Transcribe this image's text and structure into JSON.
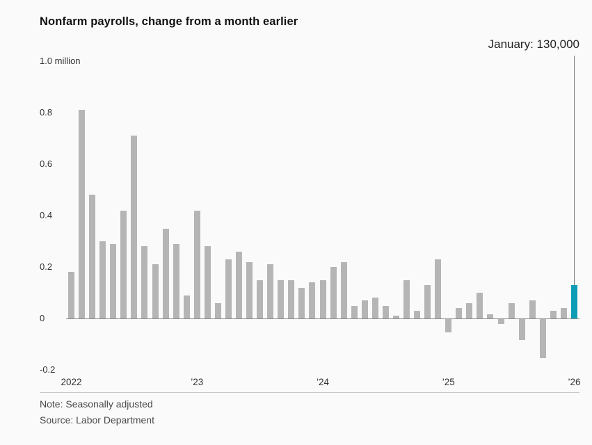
{
  "chart_data": {
    "type": "bar",
    "title": "Nonfarm payrolls, change from a month earlier",
    "annotation_label": "January: 130,000",
    "unit": "million",
    "values": [
      0.18,
      0.81,
      0.48,
      0.3,
      0.29,
      0.42,
      0.71,
      0.28,
      0.21,
      0.35,
      0.29,
      0.09,
      0.42,
      0.28,
      0.06,
      0.23,
      0.26,
      0.22,
      0.15,
      0.21,
      0.15,
      0.15,
      0.12,
      0.14,
      0.15,
      0.2,
      0.22,
      0.05,
      0.07,
      0.08,
      0.05,
      0.01,
      0.15,
      0.03,
      0.13,
      0.23,
      -0.05,
      0.04,
      0.06,
      0.1,
      0.015,
      -0.02,
      0.06,
      -0.08,
      0.07,
      -0.15,
      0.03,
      0.04,
      0.13
    ],
    "highlight_index": 48,
    "highlight_value": 0.13,
    "bar_color": "#b5b5b5",
    "highlight_color": "#0d9db5",
    "ylim": [
      -0.2,
      1.0
    ],
    "yticks": [
      1.0,
      0.8,
      0.6,
      0.4,
      0.2,
      0,
      -0.2
    ],
    "ytick_labels": [
      "1.0 million",
      "0.8",
      "0.6",
      "0.4",
      "0.2",
      "0",
      "-0.2"
    ],
    "xtick_labels": [
      "2022",
      "’23",
      "’24",
      "’25",
      "’26"
    ],
    "xtick_indices": [
      0,
      12,
      24,
      36,
      48
    ],
    "grid": "none",
    "legend": "none"
  },
  "footer": {
    "note": "Note: Seasonally adjusted",
    "source": "Source: Labor Department"
  }
}
